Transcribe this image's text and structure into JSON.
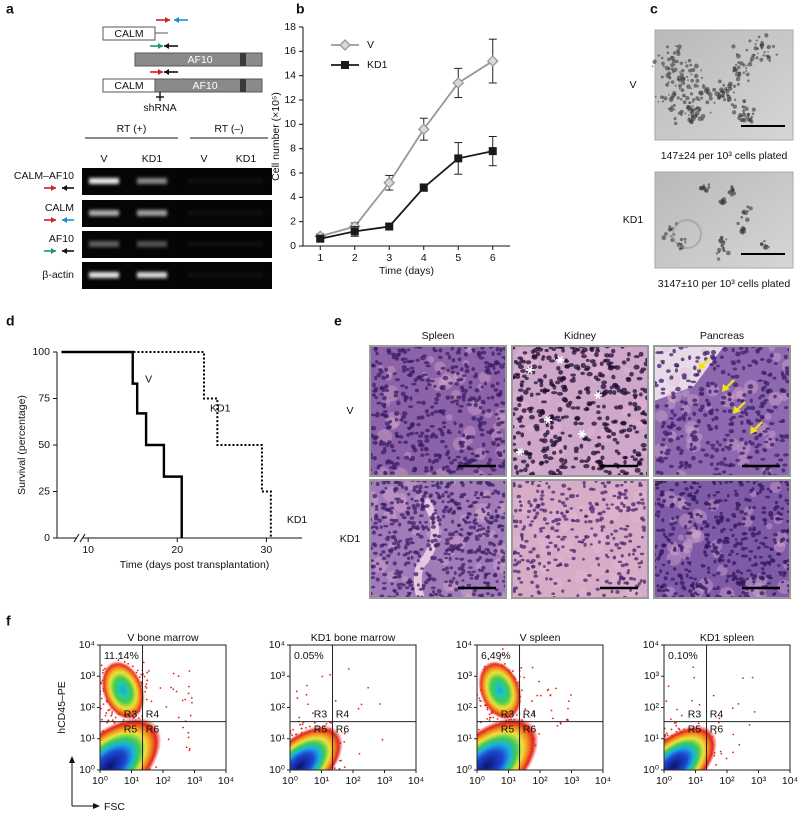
{
  "panel_labels": [
    "a",
    "b",
    "c",
    "d",
    "e",
    "f"
  ],
  "gel": {
    "schematic": [
      "CALM",
      "AF10",
      "CALM",
      "AF10"
    ],
    "shrna": "shRNA",
    "groups": [
      "RT (+)",
      "RT (–)"
    ],
    "lanes": [
      "V",
      "KD1",
      "V",
      "KD1"
    ],
    "rows": [
      "CALM–AF10",
      "CALM",
      "AF10",
      "β-actin"
    ]
  },
  "chart_data": [
    {
      "type": "line",
      "xlabel": "Time (days)",
      "ylabel": "Cell number (×10⁵)",
      "x": [
        1,
        2,
        3,
        4,
        5,
        6
      ],
      "xlim": [
        0.5,
        6.5
      ],
      "xticks": [
        1,
        2,
        3,
        4,
        5,
        6
      ],
      "ylim": [
        0,
        18
      ],
      "yticks": [
        0,
        2,
        4,
        6,
        8,
        10,
        12,
        14,
        16,
        18
      ],
      "legend": "upper left",
      "series": [
        {
          "name": "V",
          "color": "#999999",
          "marker": "diamond",
          "values": [
            0.8,
            1.6,
            5.2,
            9.6,
            13.4,
            15.2
          ],
          "errors": [
            0.2,
            0.3,
            0.6,
            0.9,
            1.2,
            1.8
          ]
        },
        {
          "name": "KD1",
          "color": "#1a1a1a",
          "marker": "square",
          "values": [
            0.6,
            1.2,
            1.6,
            4.8,
            7.2,
            7.8
          ],
          "errors": [
            0.2,
            0.4,
            0.2,
            0.3,
            1.3,
            1.2
          ]
        }
      ]
    },
    {
      "type": "step",
      "xlabel": "Time (days post transplantation)",
      "ylabel": "Survival (percentage)",
      "xlim": [
        6.5,
        34
      ],
      "xticks": [
        10,
        20,
        30
      ],
      "ylim": [
        0,
        100
      ],
      "yticks": [
        0,
        25,
        50,
        75,
        100
      ],
      "series": [
        {
          "name": "V",
          "color": "#000000",
          "dash": "solid",
          "x": [
            7,
            15,
            15.5,
            16.5,
            18.5,
            20.5
          ],
          "values": [
            100,
            83,
            67,
            50,
            33,
            0
          ]
        },
        {
          "name": "KD1",
          "color": "#000000",
          "dash": "dotted",
          "x": [
            7,
            23,
            24.5,
            29.5,
            30.5
          ],
          "values": [
            100,
            75,
            50,
            25,
            0
          ]
        }
      ],
      "annotations": [
        "KD1"
      ]
    }
  ],
  "colonies": {
    "rows": [
      {
        "label": "V",
        "caption": "147±24 per 10³ cells plated"
      },
      {
        "label": "KD1",
        "caption": "3147±10 per 10³ cells plated"
      }
    ]
  },
  "histology": {
    "columns": [
      "Spleen",
      "Kidney",
      "Pancreas"
    ],
    "rows": [
      "V",
      "KD1"
    ]
  },
  "flow": {
    "plots": [
      {
        "title": "V bone marrow",
        "percent": "11.14%"
      },
      {
        "title": "KD1 bone marrow",
        "percent": "0.05%"
      },
      {
        "title": "V spleen",
        "percent": "6.49%"
      },
      {
        "title": "KD1 spleen",
        "percent": "0.10%"
      }
    ],
    "gates": [
      "R3",
      "R4",
      "R5",
      "R6"
    ],
    "tick_labels": [
      "10⁰",
      "10¹",
      "10²",
      "10³",
      "10⁴"
    ],
    "ylabel": "hCD45–PE",
    "xlabel": "FSC"
  }
}
